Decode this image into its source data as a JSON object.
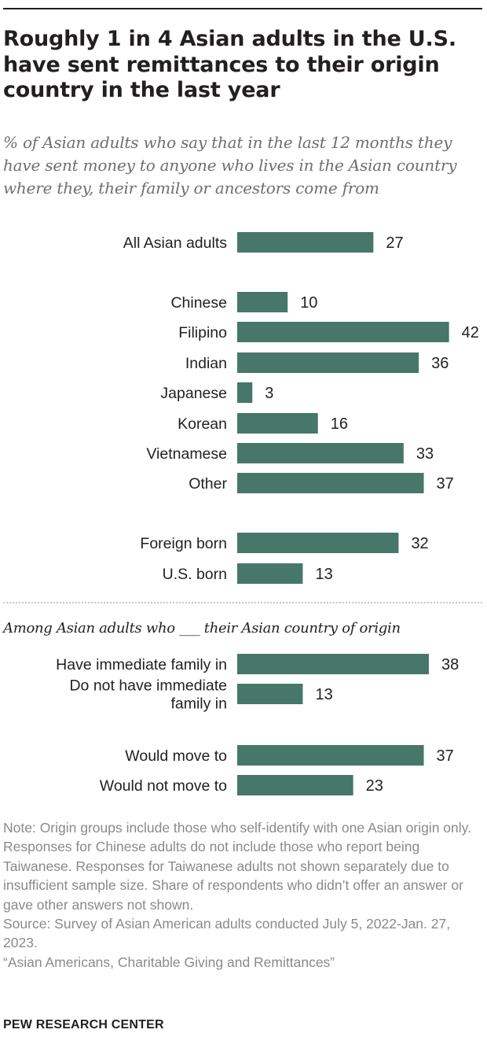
{
  "title": "Roughly 1 in 4 Asian adults in the U.S. have sent remittances to their origin country in the last year",
  "subtitle": "% of Asian adults who say that in the last 12 months they have sent money to anyone who lives in the Asian country where they, their family or ancestors come from",
  "section_label": "Among Asian adults who ___ their Asian country of origin",
  "notes": {
    "note": "Note: Origin groups include those who self-identify with one Asian origin only. Responses for Chinese adults do not include those who report being Taiwanese. Responses for Taiwanese adults not shown separately due to insufficient sample size.  Share of respondents who didn’t offer an answer or gave other answers not shown.",
    "source": "Source: Survey of Asian American adults conducted July 5, 2022-Jan. 27, 2023.",
    "report": "“Asian Americans, Charitable Giving and Remittances”"
  },
  "logo": "PEW RESEARCH CENTER",
  "colors": {
    "bar": "#477769",
    "text": "#231f20",
    "muted": "#8a8a8a"
  },
  "chart_data": {
    "type": "bar",
    "orientation": "horizontal",
    "categories": [
      [
        "All Asian adults"
      ],
      [
        "Chinese"
      ],
      [
        "Filipino"
      ],
      [
        "Indian"
      ],
      [
        "Japanese"
      ],
      [
        "Korean"
      ],
      [
        "Vietnamese"
      ],
      [
        "Other"
      ],
      [
        "Foreign born"
      ],
      [
        "U.S. born"
      ],
      [
        "Have immediate family in"
      ],
      [
        "Do not have immediate",
        "family in"
      ],
      [
        "Would move to"
      ],
      [
        "Would not move to"
      ]
    ],
    "values": [
      27,
      10,
      42,
      36,
      3,
      16,
      33,
      37,
      32,
      13,
      38,
      13,
      37,
      23
    ],
    "xlim": [
      0,
      100
    ]
  }
}
